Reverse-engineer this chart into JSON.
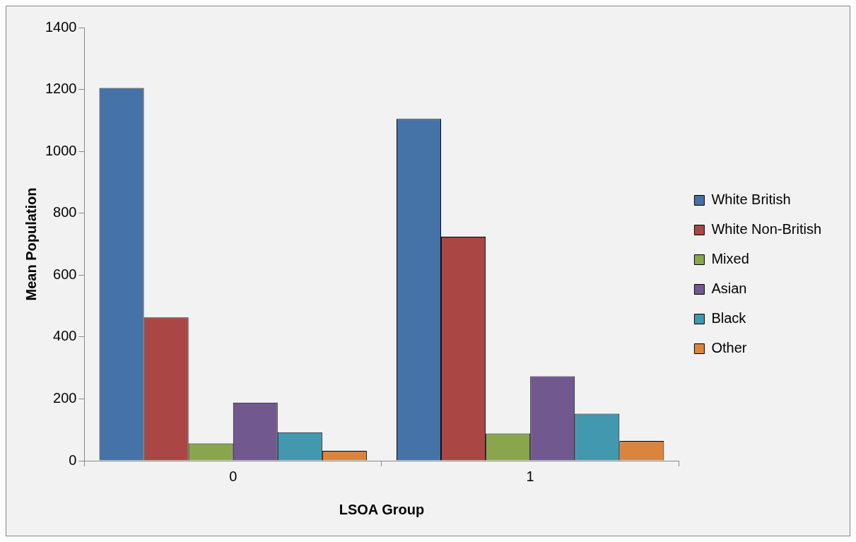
{
  "chart_data": {
    "type": "bar",
    "xlabel": "LSOA Group",
    "ylabel": "Mean Population",
    "categories": [
      "0",
      "1"
    ],
    "series": [
      {
        "name": "White British",
        "color": "#4572a7",
        "values": [
          1205,
          1105
        ]
      },
      {
        "name": "White Non-British",
        "color": "#aa4643",
        "values": [
          463,
          724
        ]
      },
      {
        "name": "Mixed",
        "color": "#89a54e",
        "values": [
          56,
          88
        ]
      },
      {
        "name": "Asian",
        "color": "#71588f",
        "values": [
          188,
          273
        ]
      },
      {
        "name": "Black",
        "color": "#4198af",
        "values": [
          92,
          152
        ]
      },
      {
        "name": "Other",
        "color": "#db843d",
        "values": [
          32,
          64
        ]
      }
    ],
    "ylim": [
      0,
      1400
    ],
    "yticks": [
      0,
      200,
      400,
      600,
      800,
      1000,
      1200,
      1400
    ],
    "grid": false,
    "legend": "right"
  }
}
